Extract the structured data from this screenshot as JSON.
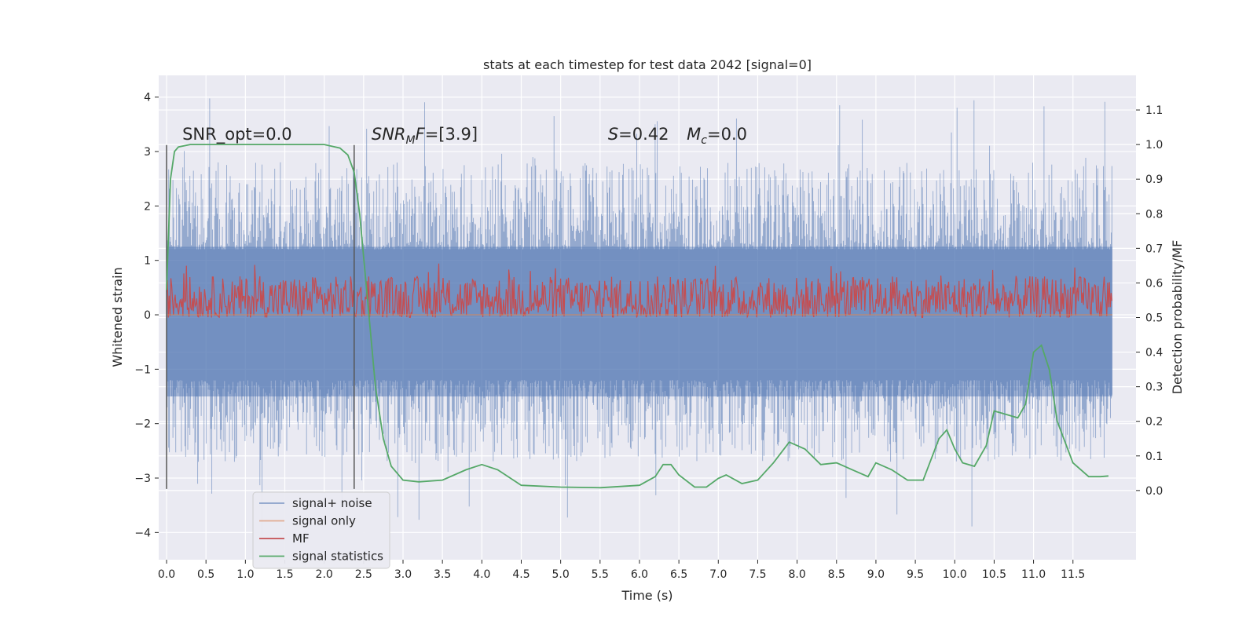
{
  "chart_data": {
    "type": "line",
    "title": "stats at each timestep for test data 2042 [signal=0]",
    "xlabel": "Time (s)",
    "ylabel_left": "Whitened strain",
    "ylabel_right": "Detection probability/MF",
    "xlim": [
      -0.1,
      12.3
    ],
    "ylim_left": [
      -4.5,
      4.4
    ],
    "ylim_right": [
      -0.2,
      1.2
    ],
    "x_ticks": [
      0.0,
      0.5,
      1.0,
      1.5,
      2.0,
      2.5,
      3.0,
      3.5,
      4.0,
      4.5,
      5.0,
      5.5,
      6.0,
      6.5,
      7.0,
      7.5,
      8.0,
      8.5,
      9.0,
      9.5,
      10.0,
      10.5,
      11.0,
      11.5
    ],
    "x_tick_labels": [
      "0.0",
      "0.5",
      "1.0",
      "1.5",
      "2.0",
      "2.5",
      "3.0",
      "3.5",
      "4.0",
      "4.5",
      "5.0",
      "5.5",
      "6.0",
      "6.5",
      "7.0",
      "7.5",
      "8.0",
      "8.5",
      "9.0",
      "9.5",
      "10.0",
      "10.5",
      "11.0",
      "11.5"
    ],
    "y_left_ticks": [
      4,
      3,
      2,
      1,
      0,
      -1,
      -2,
      -3,
      -4
    ],
    "y_left_tick_labels": [
      "4",
      "3",
      "2",
      "1",
      "0",
      "−1",
      "−2",
      "−3",
      "−4"
    ],
    "y_right_ticks": [
      1.1,
      1.0,
      0.9,
      0.8,
      0.7,
      0.6,
      0.5,
      0.4,
      0.3,
      0.2,
      0.1,
      0.0
    ],
    "y_right_tick_labels": [
      "1.1",
      "1.0",
      "0.9",
      "0.8",
      "0.7",
      "0.6",
      "0.5",
      "0.4",
      "0.3",
      "0.2",
      "0.1",
      "0.0"
    ],
    "grid": true,
    "legend_position": "lower-left",
    "annotations": [
      {
        "text": "SNR_opt=0.0",
        "x": 0.2,
        "y": 1.0
      },
      {
        "text": "SNRMF=[3.9]",
        "x": 2.6,
        "y": 1.0
      },
      {
        "text": "S=0.42",
        "x": 5.6,
        "y": 1.0
      },
      {
        "text": "Mc=0.0",
        "x": 6.6,
        "y": 1.0
      }
    ],
    "vlines": [
      {
        "x": 0.0,
        "ymin": -3.2,
        "ymax": 3.12
      },
      {
        "x": 2.38,
        "ymin": -3.2,
        "ymax": 3.12
      }
    ],
    "series": [
      {
        "name": "signal+ noise",
        "axis": "left",
        "color": "#4c72b0",
        "x_range": [
          0.0,
          12.0
        ],
        "typical_range": [
          -2.5,
          2.5
        ],
        "peak_max": 4.0,
        "peak_min": -4.1
      },
      {
        "name": "signal only",
        "axis": "left",
        "color": "#dd8452",
        "values": "flat at 0"
      },
      {
        "name": "MF",
        "axis": "right",
        "color": "#c44e52",
        "x_range": [
          0.0,
          12.0
        ],
        "typical_range": [
          0.5,
          0.62
        ],
        "peak_max": 0.66
      },
      {
        "name": "signal statistics",
        "axis": "right",
        "color": "#55a868",
        "x": [
          0.0,
          0.05,
          0.1,
          0.15,
          0.3,
          0.6,
          1.0,
          1.5,
          2.0,
          2.2,
          2.3,
          2.38,
          2.45,
          2.55,
          2.65,
          2.75,
          2.85,
          3.0,
          3.2,
          3.5,
          3.8,
          4.0,
          4.2,
          4.5,
          5.0,
          5.5,
          6.0,
          6.2,
          6.3,
          6.4,
          6.5,
          6.7,
          6.85,
          7.0,
          7.1,
          7.3,
          7.5,
          7.7,
          7.9,
          8.1,
          8.3,
          8.5,
          8.7,
          8.9,
          9.0,
          9.2,
          9.4,
          9.6,
          9.8,
          9.9,
          10.0,
          10.1,
          10.25,
          10.4,
          10.5,
          10.65,
          10.8,
          10.9,
          11.0,
          11.1,
          11.2,
          11.3,
          11.5,
          11.7,
          11.85,
          11.95
        ],
        "values": [
          0.58,
          0.9,
          0.98,
          0.993,
          1.0,
          1.0,
          1.0,
          1.0,
          1.0,
          0.99,
          0.97,
          0.92,
          0.8,
          0.55,
          0.3,
          0.15,
          0.07,
          0.03,
          0.025,
          0.03,
          0.06,
          0.075,
          0.06,
          0.015,
          0.01,
          0.008,
          0.015,
          0.04,
          0.075,
          0.075,
          0.045,
          0.01,
          0.01,
          0.035,
          0.045,
          0.02,
          0.03,
          0.08,
          0.14,
          0.12,
          0.075,
          0.08,
          0.06,
          0.04,
          0.08,
          0.06,
          0.03,
          0.03,
          0.15,
          0.175,
          0.12,
          0.08,
          0.07,
          0.13,
          0.23,
          0.22,
          0.21,
          0.25,
          0.4,
          0.42,
          0.35,
          0.2,
          0.08,
          0.04,
          0.04,
          0.042
        ]
      }
    ]
  }
}
